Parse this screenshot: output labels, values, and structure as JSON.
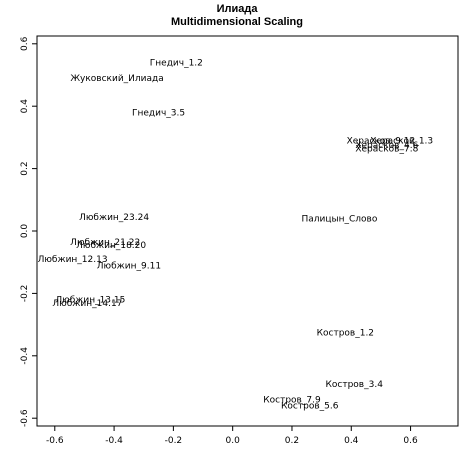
{
  "chart_data": {
    "type": "scatter",
    "title": "Илиада",
    "subtitle": "Multidimensional Scaling",
    "xlabel": "",
    "ylabel": "",
    "xlim": [
      -0.66,
      0.76
    ],
    "ylim": [
      -0.625,
      0.625
    ],
    "xticks": [
      -0.6,
      -0.4,
      -0.2,
      0.0,
      0.2,
      0.4,
      0.6
    ],
    "yticks": [
      -0.6,
      -0.4,
      -0.2,
      0.0,
      0.2,
      0.4,
      0.6
    ],
    "xtick_labels": [
      "-0.6",
      "-0.4",
      "-0.2",
      "0.0",
      "0.2",
      "0.4",
      "0.6"
    ],
    "ytick_labels": [
      "-0.6",
      "-0.4",
      "-0.2",
      "0.0",
      "0.2",
      "0.4",
      "0.6"
    ],
    "grid": false,
    "marker": "text-labels",
    "points": [
      {
        "label": "Гнедич_1.2",
        "x": -0.19,
        "y": 0.54
      },
      {
        "label": "Жуковский_Илиада",
        "x": -0.39,
        "y": 0.49
      },
      {
        "label": "Гнедич_3.5",
        "x": -0.25,
        "y": 0.38
      },
      {
        "label": "Херасков_1.3",
        "x": 0.57,
        "y": 0.29
      },
      {
        "label": "Херасков_4.6",
        "x": 0.52,
        "y": 0.275
      },
      {
        "label": "Херасков_9.12",
        "x": 0.5,
        "y": 0.29
      },
      {
        "label": "Херасков_7.8",
        "x": 0.52,
        "y": 0.265
      },
      {
        "label": "Палицын_Слово",
        "x": 0.36,
        "y": 0.04
      },
      {
        "label": "Любжин_23.24",
        "x": -0.4,
        "y": 0.045
      },
      {
        "label": "Любжин_21.22",
        "x": -0.43,
        "y": -0.035
      },
      {
        "label": "Любжин_18.20",
        "x": -0.41,
        "y": -0.045
      },
      {
        "label": "Любжин_12.13",
        "x": -0.54,
        "y": -0.09
      },
      {
        "label": "Любжин_9.11",
        "x": -0.35,
        "y": -0.11
      },
      {
        "label": "Любжин_13.15",
        "x": -0.48,
        "y": -0.22
      },
      {
        "label": "Любжин_14.17",
        "x": -0.49,
        "y": -0.23
      },
      {
        "label": "Костров_1.2",
        "x": 0.38,
        "y": -0.325
      },
      {
        "label": "Костров_3.4",
        "x": 0.41,
        "y": -0.49
      },
      {
        "label": "Костров_7.9",
        "x": 0.2,
        "y": -0.54
      },
      {
        "label": "Костров_5.6",
        "x": 0.26,
        "y": -0.56
      }
    ]
  }
}
